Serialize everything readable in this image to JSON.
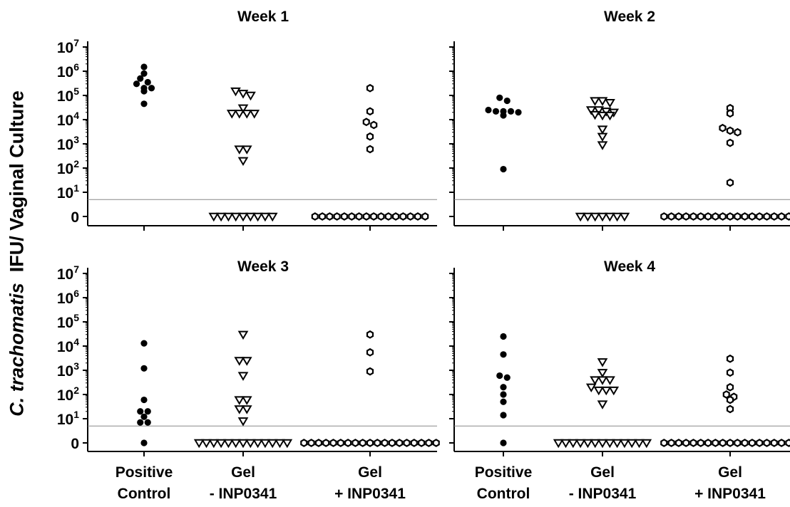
{
  "figure": {
    "y_axis_title_italic": "C. trachomatis",
    "y_axis_title_rest": "IFU/ Vaginal Culture"
  },
  "chart_data": [
    {
      "type": "scatter",
      "title": "Week 1",
      "categories": [
        "Positive Control",
        "Gel - INP0341",
        "Gel + INP0341"
      ],
      "category_labels": [
        [
          "Positive",
          "Control"
        ],
        [
          "Gel",
          "- INP0341"
        ],
        [
          "Gel",
          "+ INP0341"
        ]
      ],
      "yscale": "log",
      "y_ticks": [
        "0",
        "10^1",
        "10^2",
        "10^3",
        "10^4",
        "10^5",
        "10^6",
        "10^7"
      ],
      "detection_limit": 5,
      "series": [
        {
          "category": "Positive Control",
          "marker": "filled-circle",
          "values": [
            1500000,
            800000,
            500000,
            350000,
            300000,
            200000,
            200000,
            150000,
            45000
          ],
          "below_limit": 0
        },
        {
          "category": "Gel - INP0341",
          "marker": "open-triangle-down",
          "values": [
            150000,
            120000,
            100000,
            30000,
            18000,
            18000,
            18000,
            18000,
            600,
            600,
            200
          ],
          "below_limit": 9
        },
        {
          "category": "Gel + INP0341",
          "marker": "open-hexagon",
          "values": [
            200000,
            22000,
            8000,
            6000,
            2000,
            600
          ],
          "below_limit": 16
        }
      ]
    },
    {
      "type": "scatter",
      "title": "Week 2",
      "categories": [
        "Positive Control",
        "Gel - INP0341",
        "Gel + INP0341"
      ],
      "category_labels": [
        [
          "Positive",
          "Control"
        ],
        [
          "Gel",
          "- INP0341"
        ],
        [
          "Gel",
          "+ INP0341"
        ]
      ],
      "yscale": "log",
      "y_ticks": [
        "0",
        "10^1",
        "10^2",
        "10^3",
        "10^4",
        "10^5",
        "10^6",
        "10^7"
      ],
      "detection_limit": 5,
      "series": [
        {
          "category": "Positive Control",
          "marker": "filled-circle",
          "values": [
            80000,
            60000,
            25000,
            22000,
            22000,
            22000,
            20000,
            15000,
            90
          ],
          "below_limit": 0
        },
        {
          "category": "Gel - INP0341",
          "marker": "open-triangle-down",
          "values": [
            60000,
            60000,
            50000,
            25000,
            25000,
            22000,
            20000,
            16000,
            15000,
            15000,
            4000,
            2000,
            900
          ],
          "below_limit": 7
        },
        {
          "category": "Gel + INP0341",
          "marker": "open-hexagon",
          "values": [
            30000,
            18000,
            4500,
            3500,
            3000,
            1100,
            25
          ],
          "below_limit": 19
        }
      ]
    },
    {
      "type": "scatter",
      "title": "Week 3",
      "categories": [
        "Positive Control",
        "Gel - INP0341",
        "Gel + INP0341"
      ],
      "category_labels": [
        [
          "Positive",
          "Control"
        ],
        [
          "Gel",
          "- INP0341"
        ],
        [
          "Gel",
          "+ INP0341"
        ]
      ],
      "yscale": "log",
      "y_ticks": [
        "0",
        "10^1",
        "10^2",
        "10^3",
        "10^4",
        "10^5",
        "10^6",
        "10^7"
      ],
      "detection_limit": 5,
      "series": [
        {
          "category": "Positive Control",
          "marker": "filled-circle",
          "values": [
            13000,
            1200,
            60,
            20,
            20,
            12,
            7,
            7,
            1
          ],
          "below_limit": 0
        },
        {
          "category": "Gel - INP0341",
          "marker": "open-triangle-down",
          "values": [
            30000,
            2500,
            2500,
            600,
            60,
            60,
            25,
            25,
            8
          ],
          "below_limit": 13
        },
        {
          "category": "Gel + INP0341",
          "marker": "open-hexagon",
          "values": [
            30000,
            5500,
            900
          ],
          "below_limit": 19
        }
      ]
    },
    {
      "type": "scatter",
      "title": "Week 4",
      "categories": [
        "Positive Control",
        "Gel - INP0341",
        "Gel + INP0341"
      ],
      "category_labels": [
        [
          "Positive",
          "Control"
        ],
        [
          "Gel",
          "- INP0341"
        ],
        [
          "Gel",
          "+ INP0341"
        ]
      ],
      "yscale": "log",
      "y_ticks": [
        "0",
        "10^1",
        "10^2",
        "10^3",
        "10^4",
        "10^5",
        "10^6",
        "10^7"
      ],
      "detection_limit": 5,
      "series": [
        {
          "category": "Positive Control",
          "marker": "filled-circle",
          "values": [
            25000,
            4500,
            600,
            500,
            200,
            100,
            50,
            14,
            1
          ],
          "below_limit": 0
        },
        {
          "category": "Gel - INP0341",
          "marker": "open-triangle-down",
          "values": [
            2200,
            800,
            400,
            400,
            400,
            200,
            150,
            150,
            150,
            40
          ],
          "below_limit": 13
        },
        {
          "category": "Gel + INP0341",
          "marker": "open-hexagon",
          "values": [
            3000,
            800,
            200,
            100,
            80,
            60,
            25
          ],
          "below_limit": 19
        }
      ]
    }
  ]
}
